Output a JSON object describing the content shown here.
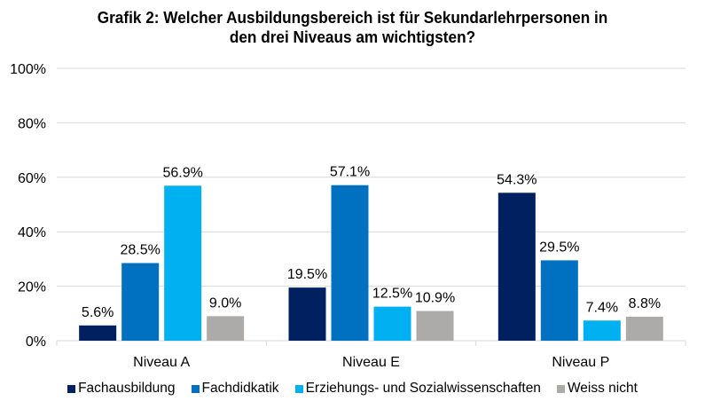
{
  "chart_data": {
    "type": "bar",
    "title": "Grafik 2: Welcher Ausbildungsbereich ist für Sekundarlehrpersonen in den drei Niveaus am wichtigsten?",
    "title_lines": [
      "Grafik 2: Welcher Ausbildungsbereich ist für Sekundarlehrpersonen in",
      "den drei Niveaus am wichtigsten?"
    ],
    "xlabel": "",
    "ylabel": "",
    "categories": [
      "Niveau A",
      "Niveau E",
      "Niveau P"
    ],
    "ylim": [
      0,
      100
    ],
    "yticks": [
      0,
      20,
      40,
      60,
      80,
      100
    ],
    "ytick_labels": [
      "0%",
      "20%",
      "40%",
      "60%",
      "80%",
      "100%"
    ],
    "grid": true,
    "legend_position": "bottom",
    "series": [
      {
        "name": "Fachausbildung",
        "color": "#002060",
        "values": [
          5.6,
          19.5,
          54.3
        ],
        "labels": [
          "5.6%",
          "19.5%",
          "54.3%"
        ]
      },
      {
        "name": "Fachdidkatik",
        "color": "#0070C0",
        "values": [
          28.5,
          57.1,
          29.5
        ],
        "labels": [
          "28.5%",
          "57.1%",
          "29.5%"
        ]
      },
      {
        "name": "Erziehungs- und Sozialwissenschaften",
        "color": "#00B0F0",
        "values": [
          56.9,
          12.5,
          7.4
        ],
        "labels": [
          "56.9%",
          "12.5%",
          "7.4%"
        ]
      },
      {
        "name": "Weiss nicht",
        "color": "#ADAAAA",
        "values": [
          9.0,
          10.9,
          8.8
        ],
        "labels": [
          "9.0%",
          "10.9%",
          "8.8%"
        ]
      }
    ]
  },
  "colors": {
    "gridline": "#D9D9D9",
    "axis": "#D9D9D9"
  }
}
